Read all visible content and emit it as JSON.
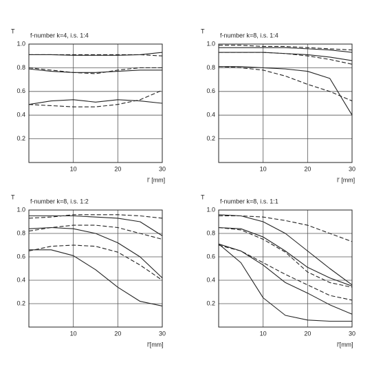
{
  "chart_data": [
    {
      "type": "line",
      "title": "f-number k=4, i.s. 1:4",
      "ylabel": "T",
      "xlabel": "l′ [mm]",
      "x": [
        0,
        5,
        10,
        15,
        20,
        25,
        30
      ],
      "xlim": [
        0,
        30
      ],
      "ylim": [
        0,
        1
      ],
      "xticks": [
        10,
        20,
        30
      ],
      "yticks": [
        0.2,
        0.4,
        0.6,
        0.8,
        {
          "value": 1,
          "label": "1.0"
        }
      ],
      "grid": true,
      "series": [
        {
          "color": "#222",
          "dashed": false,
          "values": [
            0.91,
            0.91,
            0.905,
            0.905,
            0.905,
            0.91,
            0.93
          ]
        },
        {
          "color": "#222",
          "dashed": true,
          "values": [
            0.91,
            0.91,
            0.91,
            0.91,
            0.91,
            0.91,
            0.9
          ]
        },
        {
          "color": "#222",
          "dashed": false,
          "values": [
            0.79,
            0.77,
            0.76,
            0.76,
            0.77,
            0.78,
            0.78
          ]
        },
        {
          "color": "#222",
          "dashed": true,
          "values": [
            0.8,
            0.78,
            0.76,
            0.75,
            0.78,
            0.8,
            0.8
          ]
        },
        {
          "color": "#222",
          "dashed": false,
          "values": [
            0.49,
            0.52,
            0.53,
            0.51,
            0.53,
            0.52,
            0.5
          ]
        },
        {
          "color": "#222",
          "dashed": true,
          "values": [
            0.49,
            0.48,
            0.47,
            0.47,
            0.49,
            0.53,
            0.61
          ]
        }
      ]
    },
    {
      "type": "line",
      "title": "f-number k=8, i.s. 1:4",
      "ylabel": "T",
      "xlabel": "l′ [mm]",
      "x": [
        0,
        5,
        10,
        15,
        20,
        25,
        30
      ],
      "xlim": [
        0,
        30
      ],
      "ylim": [
        0,
        1
      ],
      "xticks": [
        10,
        20,
        30
      ],
      "yticks": [
        0.2,
        0.4,
        0.6,
        0.8,
        {
          "value": 1,
          "label": "1.0"
        }
      ],
      "grid": true,
      "series": [
        {
          "color": "#222",
          "dashed": false,
          "values": [
            0.97,
            0.97,
            0.97,
            0.97,
            0.96,
            0.95,
            0.93
          ]
        },
        {
          "color": "#222",
          "dashed": true,
          "values": [
            0.99,
            0.99,
            0.98,
            0.98,
            0.97,
            0.96,
            0.95
          ]
        },
        {
          "color": "#222",
          "dashed": false,
          "values": [
            0.93,
            0.93,
            0.93,
            0.92,
            0.91,
            0.89,
            0.86
          ]
        },
        {
          "color": "#222",
          "dashed": true,
          "values": [
            0.93,
            0.93,
            0.93,
            0.92,
            0.9,
            0.87,
            0.83
          ]
        },
        {
          "color": "#222",
          "dashed": false,
          "values": [
            0.81,
            0.81,
            0.8,
            0.79,
            0.77,
            0.71,
            0.4
          ]
        },
        {
          "color": "#222",
          "dashed": true,
          "values": [
            0.81,
            0.8,
            0.78,
            0.73,
            0.66,
            0.6,
            0.52
          ]
        }
      ]
    },
    {
      "type": "line",
      "title": "f-number k=8, i.s. 1:2",
      "ylabel": "T",
      "xlabel": "l′[mm]",
      "x": [
        0,
        5,
        10,
        15,
        20,
        25,
        30
      ],
      "xlim": [
        0,
        30
      ],
      "ylim": [
        0,
        1
      ],
      "xticks": [
        10,
        20,
        30
      ],
      "yticks": [
        0.2,
        0.4,
        0.6,
        0.8,
        {
          "value": 1,
          "label": "1.0"
        }
      ],
      "grid": true,
      "series": [
        {
          "color": "#222",
          "dashed": false,
          "values": [
            0.95,
            0.95,
            0.95,
            0.94,
            0.93,
            0.9,
            0.78
          ]
        },
        {
          "color": "#222",
          "dashed": true,
          "values": [
            0.93,
            0.94,
            0.96,
            0.96,
            0.96,
            0.95,
            0.93
          ]
        },
        {
          "color": "#222",
          "dashed": false,
          "values": [
            0.84,
            0.85,
            0.84,
            0.8,
            0.72,
            0.6,
            0.42
          ]
        },
        {
          "color": "#222",
          "dashed": true,
          "values": [
            0.82,
            0.85,
            0.87,
            0.87,
            0.85,
            0.8,
            0.75
          ]
        },
        {
          "color": "#222",
          "dashed": false,
          "values": [
            0.66,
            0.66,
            0.61,
            0.49,
            0.34,
            0.22,
            0.18
          ]
        },
        {
          "color": "#222",
          "dashed": true,
          "values": [
            0.65,
            0.69,
            0.7,
            0.69,
            0.64,
            0.53,
            0.4
          ]
        }
      ]
    },
    {
      "type": "line",
      "title": "f-number k=8, i.s. 1:1",
      "ylabel": "T",
      "xlabel": "l′[mm]",
      "x": [
        0,
        5,
        10,
        15,
        20,
        25,
        30
      ],
      "xlim": [
        0,
        30
      ],
      "ylim": [
        0,
        1
      ],
      "xticks": [
        10,
        20,
        30
      ],
      "yticks": [
        0.2,
        0.4,
        0.6,
        0.8,
        {
          "value": 1,
          "label": "1.0"
        }
      ],
      "grid": true,
      "series": [
        {
          "color": "#222",
          "dashed": false,
          "values": [
            0.96,
            0.95,
            0.9,
            0.8,
            0.65,
            0.5,
            0.36
          ]
        },
        {
          "color": "#222",
          "dashed": true,
          "values": [
            0.95,
            0.95,
            0.94,
            0.91,
            0.87,
            0.8,
            0.73
          ]
        },
        {
          "color": "#222",
          "dashed": false,
          "values": [
            0.85,
            0.84,
            0.77,
            0.65,
            0.51,
            0.42,
            0.35
          ]
        },
        {
          "color": "#222",
          "dashed": true,
          "values": [
            0.85,
            0.83,
            0.75,
            0.64,
            0.47,
            0.38,
            0.34
          ]
        },
        {
          "color": "#222",
          "dashed": false,
          "values": [
            0.71,
            0.65,
            0.53,
            0.38,
            0.29,
            0.19,
            0.11
          ]
        },
        {
          "color": "#222",
          "dashed": true,
          "values": [
            0.7,
            0.65,
            0.55,
            0.45,
            0.36,
            0.27,
            0.23
          ]
        },
        {
          "color": "#222",
          "dashed": false,
          "values": [
            0.71,
            0.55,
            0.25,
            0.1,
            0.06,
            0.05,
            0.05
          ]
        }
      ]
    }
  ]
}
